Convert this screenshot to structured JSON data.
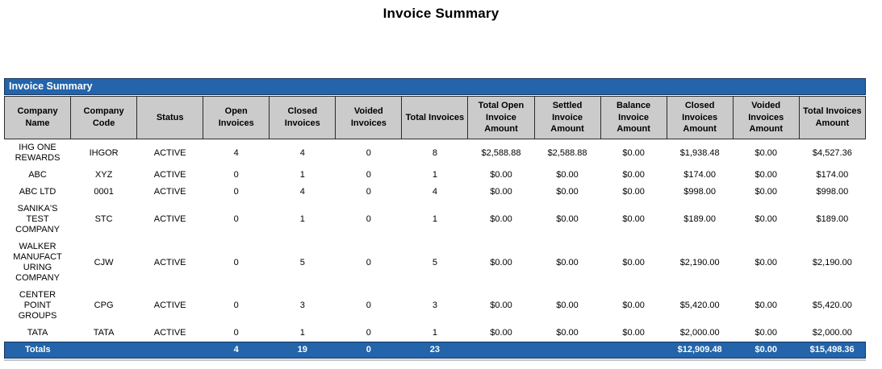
{
  "page_title": "Invoice Summary",
  "report": {
    "caption": "Invoice Summary",
    "columns": [
      "Company Name",
      "Company Code",
      "Status",
      "Open Invoices",
      "Closed Invoices",
      "Voided Invoices",
      "Total Invoices",
      "Total Open Invoice Amount",
      "Settled Invoice Amount",
      "Balance Invoice Amount",
      "Closed Invoices Amount",
      "Voided Invoices Amount",
      "Total Invoices Amount"
    ],
    "rows": [
      [
        "IHG ONE REWARDS",
        "IHGOR",
        "ACTIVE",
        "4",
        "4",
        "0",
        "8",
        "$2,588.88",
        "$2,588.88",
        "$0.00",
        "$1,938.48",
        "$0.00",
        "$4,527.36"
      ],
      [
        "ABC",
        "XYZ",
        "ACTIVE",
        "0",
        "1",
        "0",
        "1",
        "$0.00",
        "$0.00",
        "$0.00",
        "$174.00",
        "$0.00",
        "$174.00"
      ],
      [
        "ABC LTD",
        "0001",
        "ACTIVE",
        "0",
        "4",
        "0",
        "4",
        "$0.00",
        "$0.00",
        "$0.00",
        "$998.00",
        "$0.00",
        "$998.00"
      ],
      [
        "SANIKA'S TEST COMPANY",
        "STC",
        "ACTIVE",
        "0",
        "1",
        "0",
        "1",
        "$0.00",
        "$0.00",
        "$0.00",
        "$189.00",
        "$0.00",
        "$189.00"
      ],
      [
        "WALKER MANUFACTURING COMPANY",
        "CJW",
        "ACTIVE",
        "0",
        "5",
        "0",
        "5",
        "$0.00",
        "$0.00",
        "$0.00",
        "$2,190.00",
        "$0.00",
        "$2,190.00"
      ],
      [
        "CENTER POINT GROUPS",
        "CPG",
        "ACTIVE",
        "0",
        "3",
        "0",
        "3",
        "$0.00",
        "$0.00",
        "$0.00",
        "$5,420.00",
        "$0.00",
        "$5,420.00"
      ],
      [
        "TATA",
        "TATA",
        "ACTIVE",
        "0",
        "1",
        "0",
        "1",
        "$0.00",
        "$0.00",
        "$0.00",
        "$2,000.00",
        "$0.00",
        "$2,000.00"
      ]
    ],
    "totals": [
      "Totals",
      "",
      "",
      "4",
      "19",
      "0",
      "23",
      "",
      "",
      "",
      "$12,909.48",
      "$0.00",
      "$15,498.36"
    ]
  },
  "colors": {
    "accent_blue": "#2364AA",
    "accent_blue_border": "#17375E",
    "header_gray": "#CBCBCB",
    "text_black": "#000000",
    "text_white": "#FFFFFF"
  }
}
